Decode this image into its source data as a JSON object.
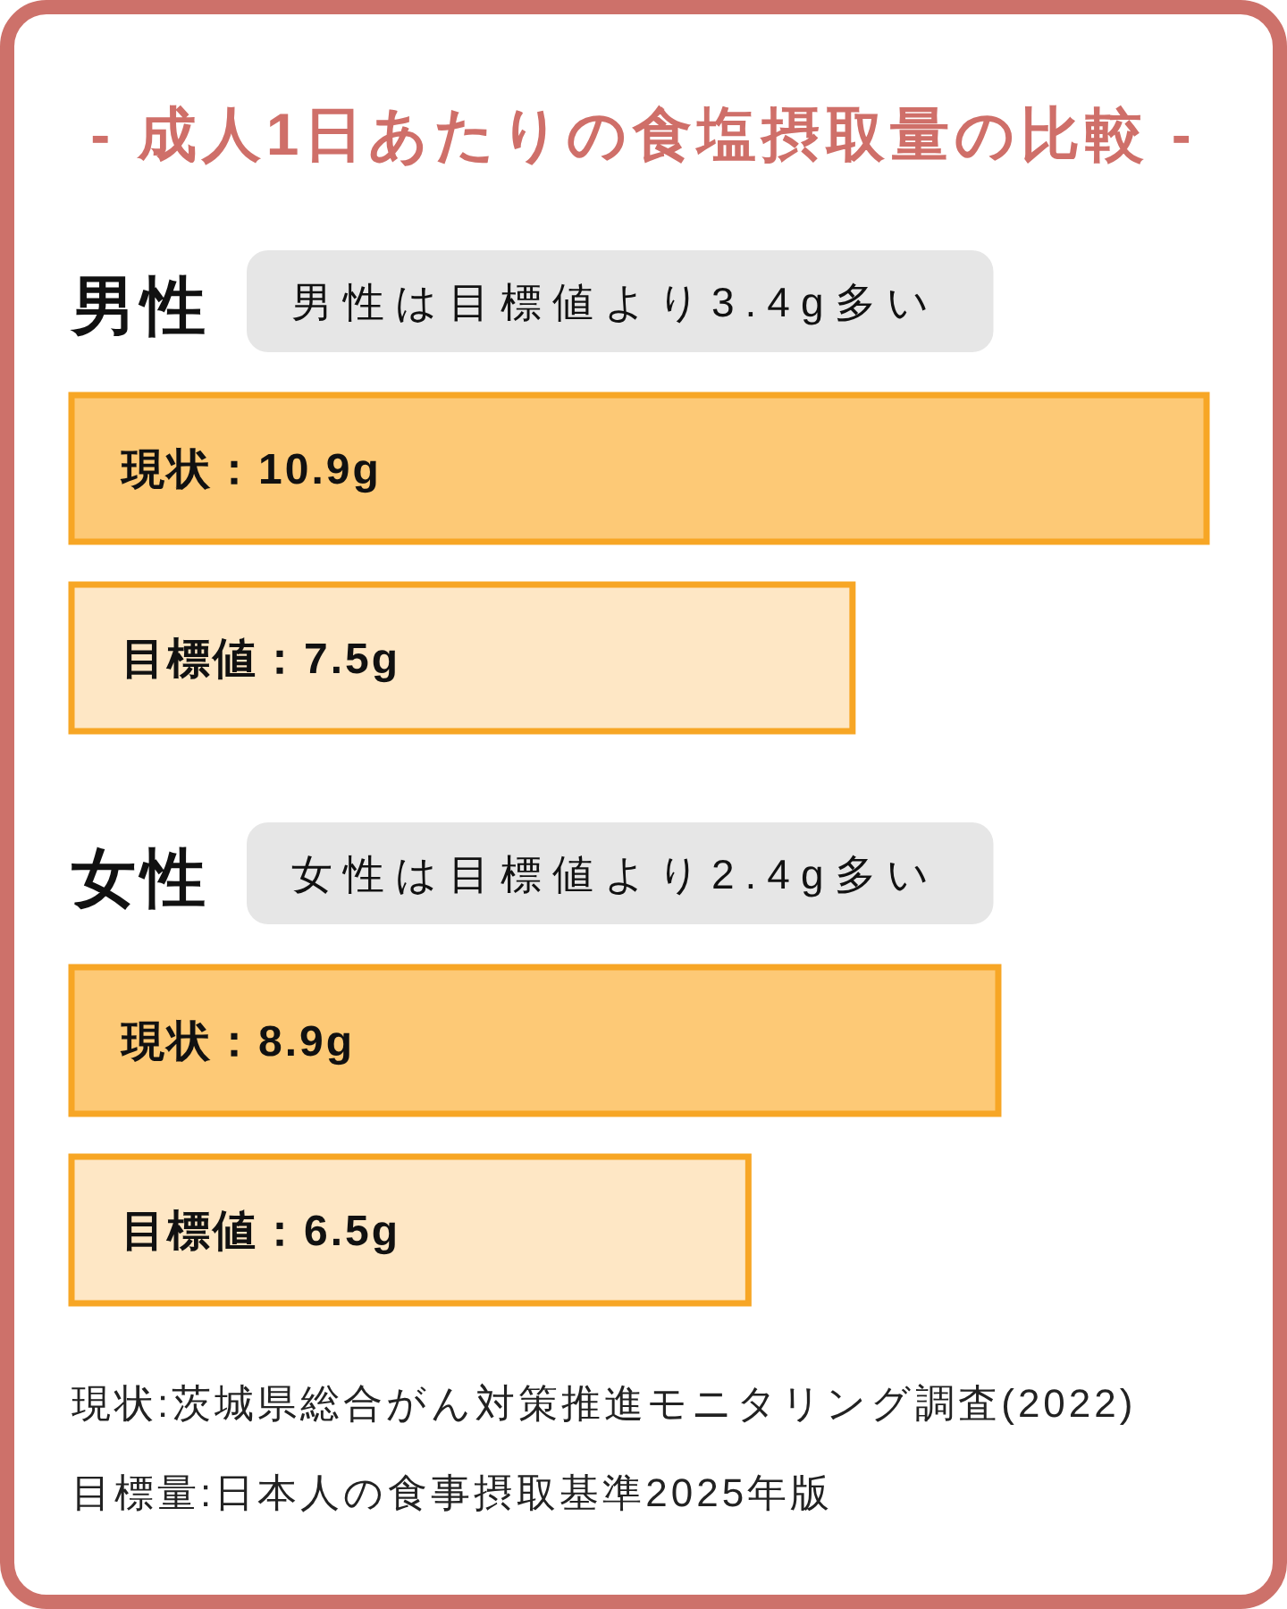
{
  "chart_data": {
    "type": "bar",
    "orientation": "horizontal",
    "title": "- 成人1日あたりの食塩摂取量の比較 -",
    "categories": [
      "男性",
      "女性"
    ],
    "series": [
      {
        "color": "#fdc976",
        "values": [
          10.9,
          8.9
        ],
        "value_labels": [
          "現状：10.9g",
          "現状：8.9g"
        ]
      },
      {
        "color": "#fee7c5",
        "values": [
          7.5,
          6.5
        ],
        "value_labels": [
          "目標値：7.5g",
          "目標値：6.5g"
        ]
      }
    ],
    "annotations": [
      "男性は目標値より3.4g多い",
      "女性は目標値より2.4g多い",
      "現状:茨城県総合がん対策推進モニタリング調査(2022)",
      "目標量:日本人の食事摂取基準2025年版"
    ]
  }
}
